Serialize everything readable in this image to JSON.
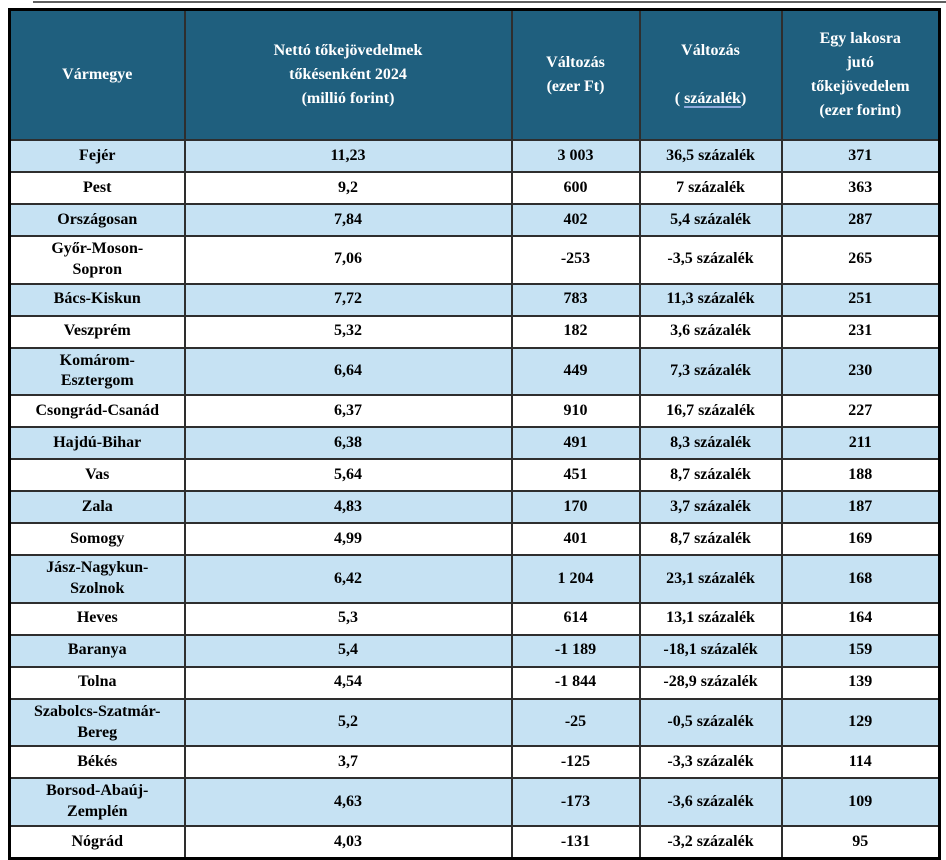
{
  "colors": {
    "header_bg": "#1F5F7E",
    "header_text": "#FFFFFF",
    "row_alt_bg": "#C6E2F3",
    "row_bg": "#FFFFFF",
    "border_outer": "#000000",
    "border_inner": "#2E2E2E",
    "link_underline": "#8FAADC",
    "top_rule": "#5F5F5F",
    "cell_text": "#000000"
  },
  "header": {
    "col4_line1": "Változás",
    "col4_prefix": "( ",
    "col4_link": "százalék",
    "col4_suffix": ")"
  },
  "chart_data": {
    "type": "table",
    "title": "",
    "columns": [
      "Vármegye",
      "Nettó tőkejövedelmek\ntőkésenként 2024\n(millió forint)",
      "Változás\n(ezer Ft)",
      "Változás\n( százalék)",
      "Egy lakosra\njutó\ntőkejövedelem\n(ezer forint)"
    ],
    "rows": [
      [
        "Fejér",
        "11,23",
        "3 003",
        "36,5 százalék",
        "371"
      ],
      [
        "Pest",
        "9,2",
        "600",
        "7 százalék",
        "363"
      ],
      [
        "Országosan",
        "7,84",
        "402",
        "5,4 százalék",
        "287"
      ],
      [
        "Győr-Moson-\nSopron",
        "7,06",
        "-253",
        "-3,5 százalék",
        "265"
      ],
      [
        "Bács-Kiskun",
        "7,72",
        "783",
        "11,3 százalék",
        "251"
      ],
      [
        "Veszprém",
        "5,32",
        "182",
        "3,6 százalék",
        "231"
      ],
      [
        "Komárom-\nEsztergom",
        "6,64",
        "449",
        "7,3 százalék",
        "230"
      ],
      [
        "Csongrád-Csanád",
        "6,37",
        "910",
        "16,7 százalék",
        "227"
      ],
      [
        "Hajdú-Bihar",
        "6,38",
        "491",
        "8,3 százalék",
        "211"
      ],
      [
        "Vas",
        "5,64",
        "451",
        "8,7 százalék",
        "188"
      ],
      [
        "Zala",
        "4,83",
        "170",
        "3,7 százalék",
        "187"
      ],
      [
        "Somogy",
        "4,99",
        "401",
        "8,7 százalék",
        "169"
      ],
      [
        "Jász-Nagykun-\nSzolnok",
        "6,42",
        "1 204",
        "23,1 százalék",
        "168"
      ],
      [
        "Heves",
        "5,3",
        "614",
        "13,1 százalék",
        "164"
      ],
      [
        "Baranya",
        "5,4",
        "-1 189",
        "-18,1 százalék",
        "159"
      ],
      [
        "Tolna",
        "4,54",
        "-1 844",
        "-28,9 százalék",
        "139"
      ],
      [
        "Szabolcs-Szatmár-\nBereg",
        "5,2",
        "-25",
        "-0,5 százalék",
        "129"
      ],
      [
        "Békés",
        "3,7",
        "-125",
        "-3,3 százalék",
        "114"
      ],
      [
        "Borsod-Abaúj-\nZemplén",
        "4,63",
        "-173",
        "-3,6 százalék",
        "109"
      ],
      [
        "Nógrád",
        "4,03",
        "-131",
        "-3,2 százalék",
        "95"
      ]
    ]
  }
}
